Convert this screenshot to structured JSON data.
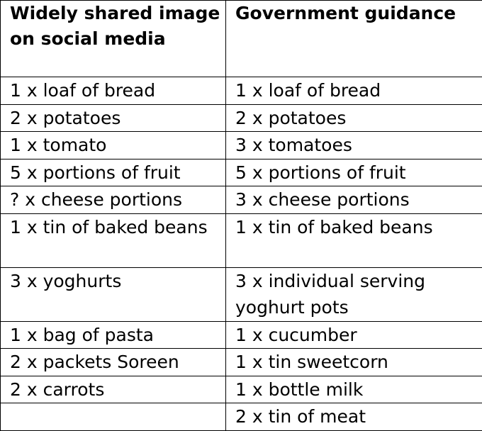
{
  "table": {
    "headers": [
      "Widely shared image on social media",
      "Government guidance"
    ],
    "rows": [
      [
        "1 x loaf of bread",
        "1 x loaf of bread"
      ],
      [
        "2 x potatoes",
        "2 x potatoes"
      ],
      [
        "1 x tomato",
        "3 x tomatoes"
      ],
      [
        "5 x portions of fruit",
        "5 x portions of fruit"
      ],
      [
        "? x cheese portions",
        "3 x cheese portions"
      ],
      [
        "1 x tin of baked beans",
        "1 x tin of baked beans"
      ],
      [
        "3 x yoghurts",
        "3 x individual serving yoghurt pots"
      ],
      [
        "1 x bag of pasta",
        "1 x cucumber"
      ],
      [
        "2 x packets Soreen",
        "1 x tin sweetcorn"
      ],
      [
        "2 x carrots",
        "1 x bottle milk"
      ],
      [
        "",
        "2 x tin of meat"
      ]
    ]
  }
}
